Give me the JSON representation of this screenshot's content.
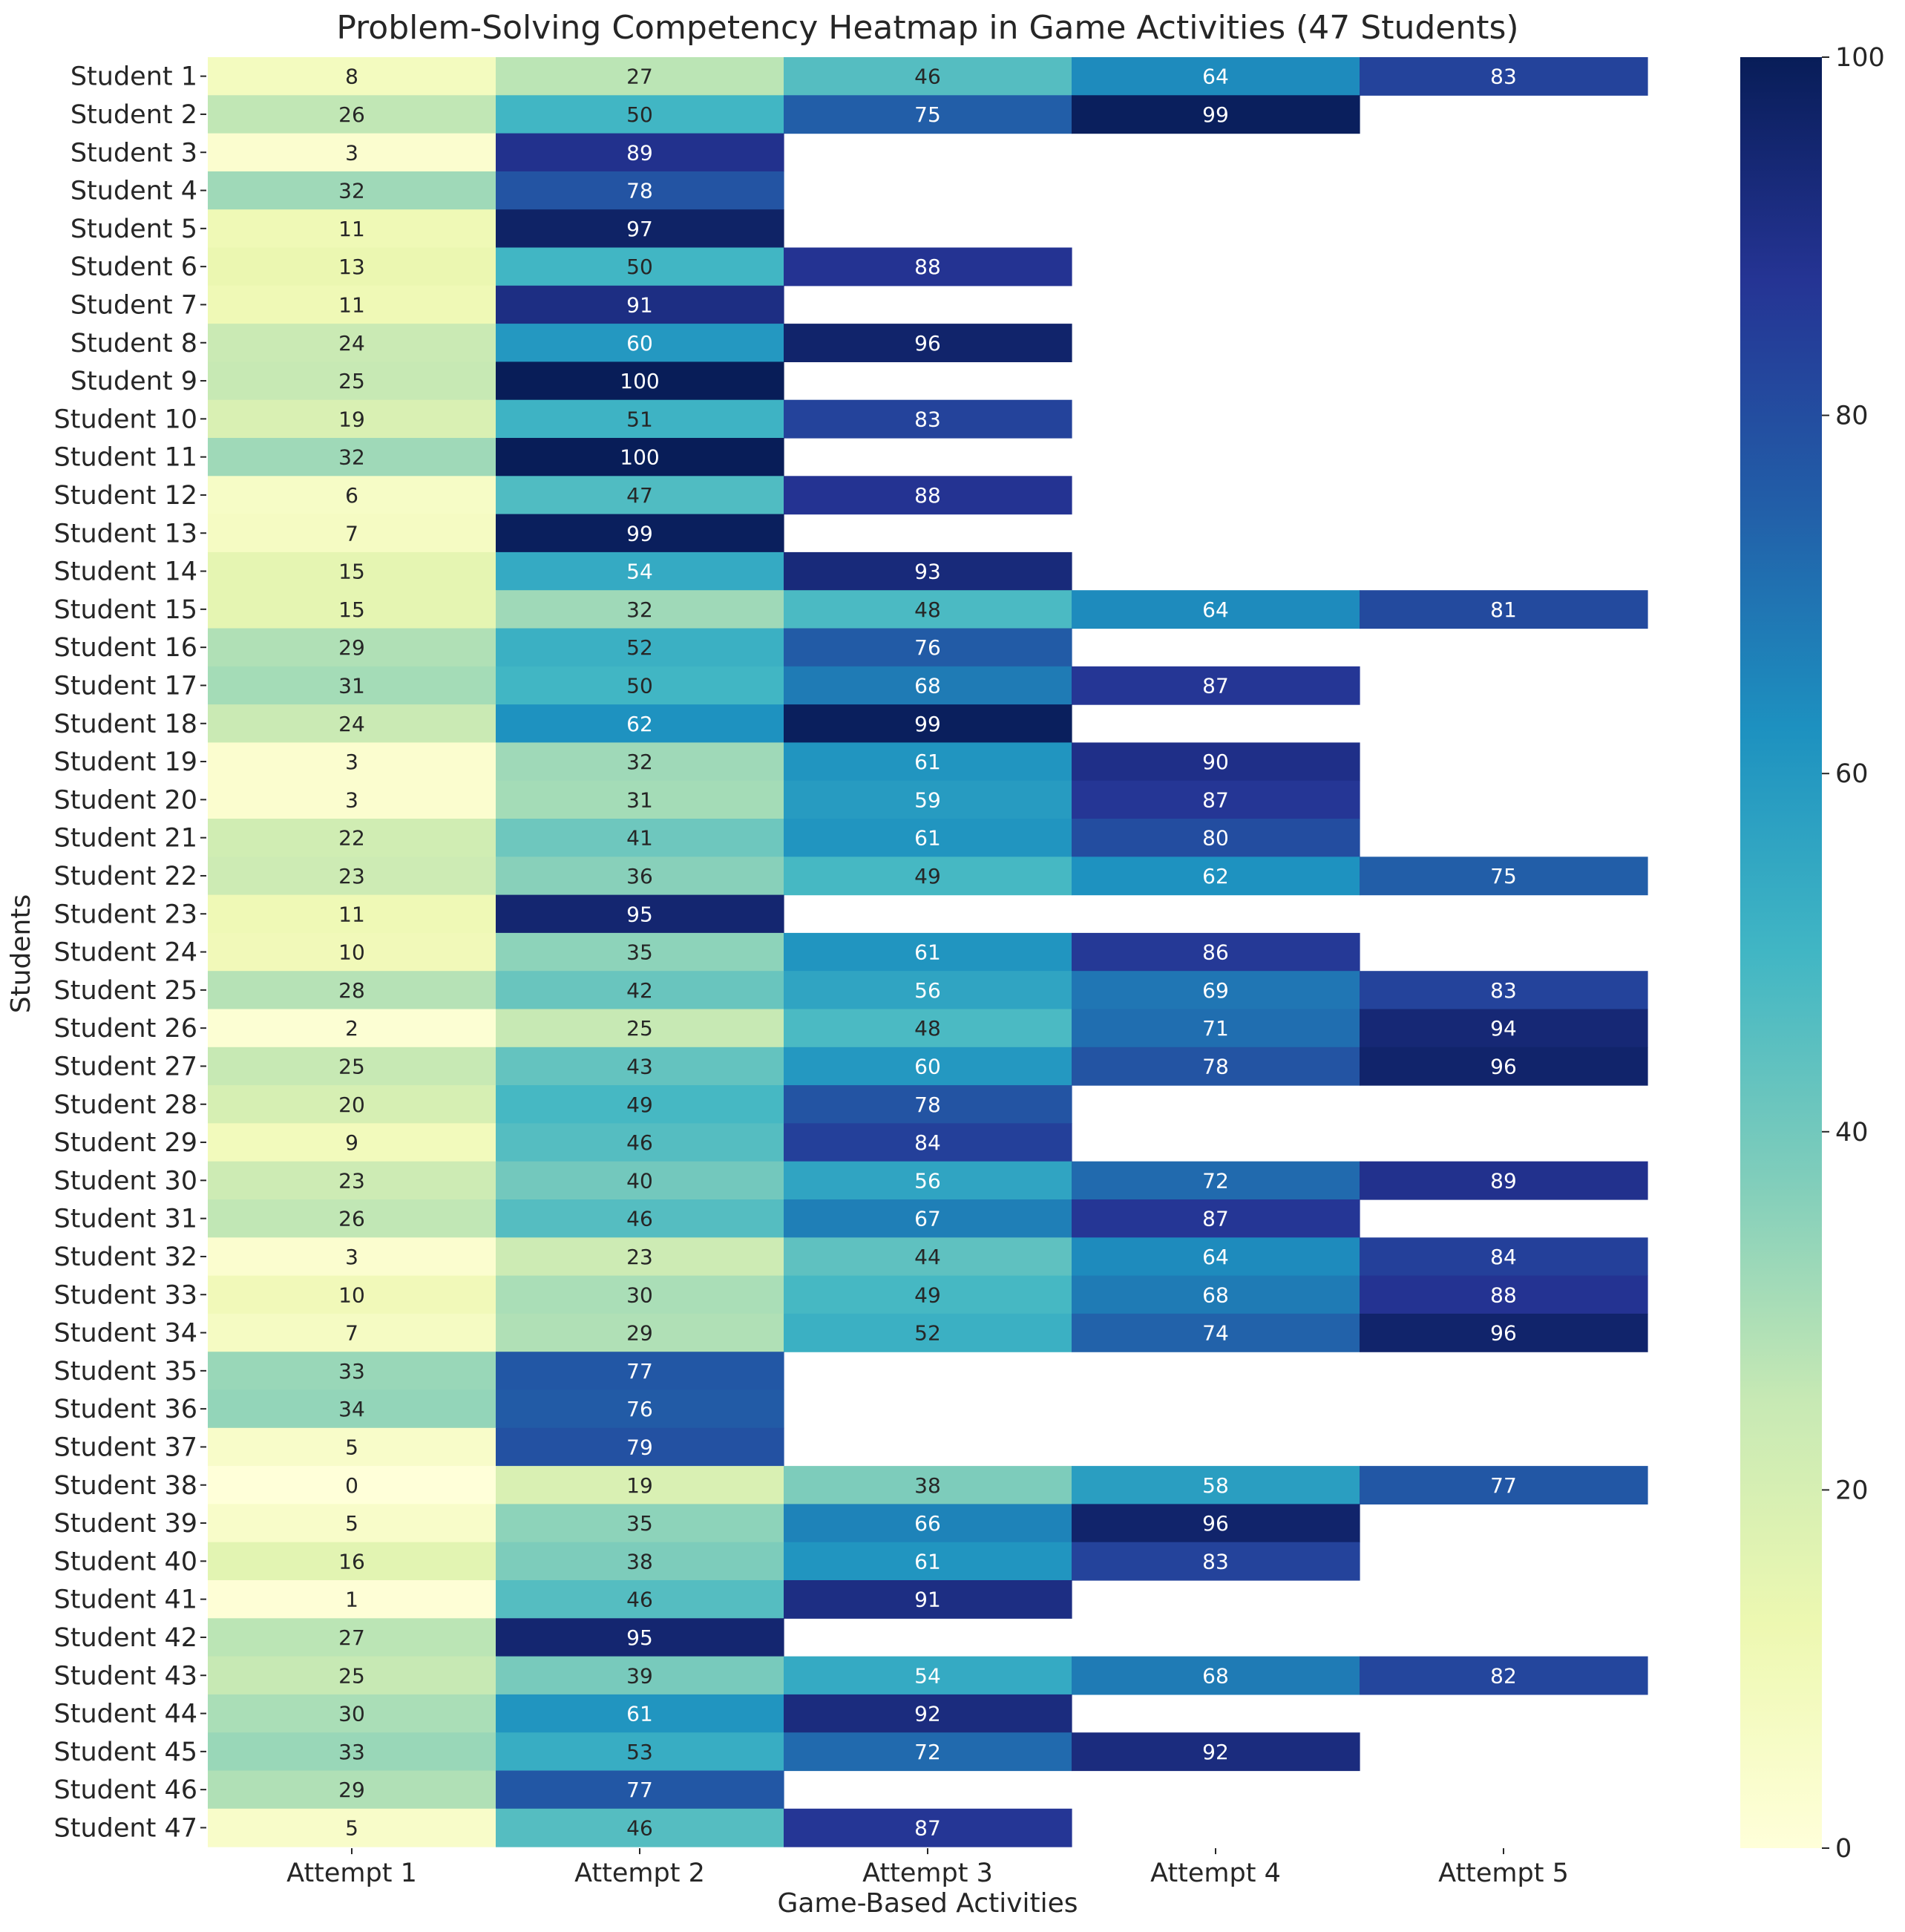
{
  "chart_data": {
    "type": "heatmap",
    "title": "Problem-Solving Competency Heatmap in Game Activities (47 Students)",
    "xlabel": "Game-Based Activities",
    "ylabel": "Students",
    "columns": [
      "Attempt 1",
      "Attempt 2",
      "Attempt 3",
      "Attempt 4",
      "Attempt 5"
    ],
    "rows": [
      "Student 1",
      "Student 2",
      "Student 3",
      "Student 4",
      "Student 5",
      "Student 6",
      "Student 7",
      "Student 8",
      "Student 9",
      "Student 10",
      "Student 11",
      "Student 12",
      "Student 13",
      "Student 14",
      "Student 15",
      "Student 16",
      "Student 17",
      "Student 18",
      "Student 19",
      "Student 20",
      "Student 21",
      "Student 22",
      "Student 23",
      "Student 24",
      "Student 25",
      "Student 26",
      "Student 27",
      "Student 28",
      "Student 29",
      "Student 30",
      "Student 31",
      "Student 32",
      "Student 33",
      "Student 34",
      "Student 35",
      "Student 36",
      "Student 37",
      "Student 38",
      "Student 39",
      "Student 40",
      "Student 41",
      "Student 42",
      "Student 43",
      "Student 44",
      "Student 45",
      "Student 46",
      "Student 47"
    ],
    "values": [
      [
        8,
        27,
        46,
        64,
        83
      ],
      [
        26,
        50,
        75,
        99,
        null
      ],
      [
        3,
        89,
        null,
        null,
        null
      ],
      [
        32,
        78,
        null,
        null,
        null
      ],
      [
        11,
        97,
        null,
        null,
        null
      ],
      [
        13,
        50,
        88,
        null,
        null
      ],
      [
        11,
        91,
        null,
        null,
        null
      ],
      [
        24,
        60,
        96,
        null,
        null
      ],
      [
        25,
        100,
        null,
        null,
        null
      ],
      [
        19,
        51,
        83,
        null,
        null
      ],
      [
        32,
        100,
        null,
        null,
        null
      ],
      [
        6,
        47,
        88,
        null,
        null
      ],
      [
        7,
        99,
        null,
        null,
        null
      ],
      [
        15,
        54,
        93,
        null,
        null
      ],
      [
        15,
        32,
        48,
        64,
        81
      ],
      [
        29,
        52,
        76,
        null,
        null
      ],
      [
        31,
        50,
        68,
        87,
        null
      ],
      [
        24,
        62,
        99,
        null,
        null
      ],
      [
        3,
        32,
        61,
        90,
        null
      ],
      [
        3,
        31,
        59,
        87,
        null
      ],
      [
        22,
        41,
        61,
        80,
        null
      ],
      [
        23,
        36,
        49,
        62,
        75
      ],
      [
        11,
        95,
        null,
        null,
        null
      ],
      [
        10,
        35,
        61,
        86,
        null
      ],
      [
        28,
        42,
        56,
        69,
        83
      ],
      [
        2,
        25,
        48,
        71,
        94
      ],
      [
        25,
        43,
        60,
        78,
        96
      ],
      [
        20,
        49,
        78,
        null,
        null
      ],
      [
        9,
        46,
        84,
        null,
        null
      ],
      [
        23,
        40,
        56,
        72,
        89
      ],
      [
        26,
        46,
        67,
        87,
        null
      ],
      [
        3,
        23,
        44,
        64,
        84
      ],
      [
        10,
        30,
        49,
        68,
        88
      ],
      [
        7,
        29,
        52,
        74,
        96
      ],
      [
        33,
        77,
        null,
        null,
        null
      ],
      [
        34,
        76,
        null,
        null,
        null
      ],
      [
        5,
        79,
        null,
        null,
        null
      ],
      [
        0,
        19,
        38,
        58,
        77
      ],
      [
        5,
        35,
        66,
        96,
        null
      ],
      [
        16,
        38,
        61,
        83,
        null
      ],
      [
        1,
        46,
        91,
        null,
        null
      ],
      [
        27,
        95,
        null,
        null,
        null
      ],
      [
        25,
        39,
        54,
        68,
        82
      ],
      [
        30,
        61,
        92,
        null,
        null
      ],
      [
        33,
        53,
        72,
        92,
        null
      ],
      [
        29,
        77,
        null,
        null,
        null
      ],
      [
        5,
        46,
        87,
        null,
        null
      ]
    ],
    "colorbar": {
      "min": 0,
      "max": 100,
      "ticks": [
        0,
        20,
        40,
        60,
        80,
        100
      ],
      "colormap": "YlGnBu"
    }
  }
}
